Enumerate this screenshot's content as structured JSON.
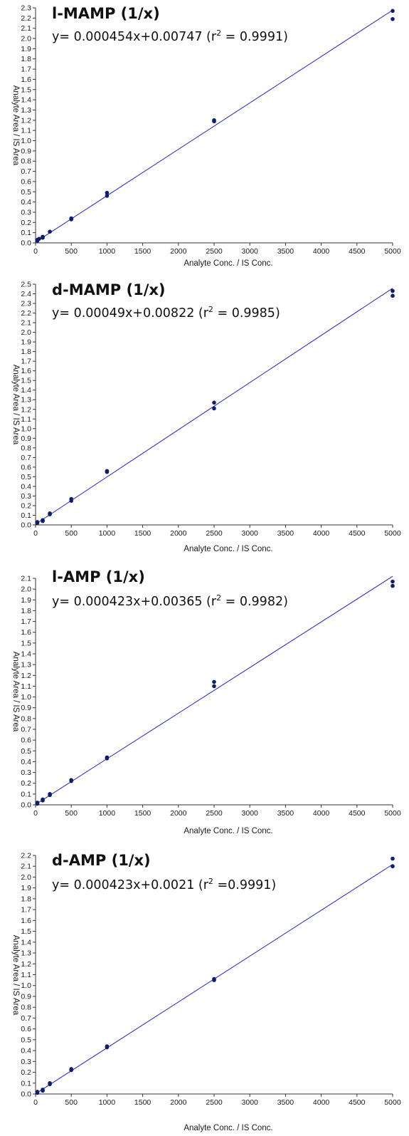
{
  "colors": {
    "line": "#1f23c8",
    "points": "#0d1f6b",
    "axis": "#333333"
  },
  "chart_data": [
    {
      "type": "scatter",
      "title": "l-MAMP (1/x)",
      "equation": {
        "before": "y= 0.000454x+0.00747 (r",
        "exp": "2",
        "after": " = 0.9991)"
      },
      "xlabel": "Analyte Conc. / IS Conc.",
      "ylabel": "Analyte Area / IS Area",
      "xlim": [
        0,
        5000
      ],
      "ylim": [
        0,
        2.3
      ],
      "yticks": [
        "0.0",
        "0.1",
        "0.2",
        "0.3",
        "0.4",
        "0.5",
        "0.6",
        "0.7",
        "0.8",
        "0.9",
        "1.0",
        "1.1",
        "1.2",
        "1.3",
        "1.4",
        "1.5",
        "1.6",
        "1.7",
        "1.8",
        "1.9",
        "2.0",
        "2.1",
        "2.2",
        "2.3"
      ],
      "xticks": [
        "0",
        "500",
        "1000",
        "1500",
        "2000",
        "2500",
        "3000",
        "3500",
        "4000",
        "4500",
        "5000"
      ],
      "fit": {
        "slope": 0.000454,
        "intercept": 0.00747
      },
      "points": [
        [
          25,
          0.03
        ],
        [
          25,
          0.02
        ],
        [
          50,
          0.04
        ],
        [
          100,
          0.06
        ],
        [
          100,
          0.05
        ],
        [
          200,
          0.11
        ],
        [
          500,
          0.24
        ],
        [
          500,
          0.23
        ],
        [
          1000,
          0.49
        ],
        [
          1000,
          0.46
        ],
        [
          2500,
          1.2
        ],
        [
          2500,
          1.19
        ],
        [
          5000,
          2.27
        ],
        [
          5000,
          2.19
        ]
      ]
    },
    {
      "type": "scatter",
      "title": "d-MAMP (1/x)",
      "equation": {
        "before": "y= 0.00049x+0.00822 (r",
        "exp": "2",
        "after": " = 0.9985)"
      },
      "xlabel": "Analyte Conc. / IS Conc.",
      "ylabel": "Analyte Area / IS Area",
      "xlim": [
        0,
        5000
      ],
      "ylim": [
        0,
        2.5
      ],
      "yticks": [
        "0.0",
        "0.1",
        "0.2",
        "0.3",
        "0.4",
        "0.5",
        "0.6",
        "0.7",
        "0.8",
        "0.9",
        "1.0",
        "1.1",
        "1.2",
        "1.3",
        "1.4",
        "1.5",
        "1.6",
        "1.7",
        "1.8",
        "1.9",
        "2.0",
        "2.1",
        "2.2",
        "2.3",
        "2.4",
        "2.5"
      ],
      "xticks": [
        "0",
        "500",
        "1000",
        "1500",
        "2000",
        "2500",
        "3000",
        "3500",
        "4000",
        "4500",
        "5000"
      ],
      "fit": {
        "slope": 0.00049,
        "intercept": 0.00822
      },
      "points": [
        [
          25,
          0.03
        ],
        [
          25,
          0.02
        ],
        [
          100,
          0.05
        ],
        [
          100,
          0.04
        ],
        [
          200,
          0.12
        ],
        [
          200,
          0.11
        ],
        [
          500,
          0.27
        ],
        [
          500,
          0.25
        ],
        [
          1000,
          0.56
        ],
        [
          1000,
          0.55
        ],
        [
          2500,
          1.27
        ],
        [
          2500,
          1.21
        ],
        [
          5000,
          2.43
        ],
        [
          5000,
          2.38
        ]
      ]
    },
    {
      "type": "scatter",
      "title": "l-AMP (1/x)",
      "equation": {
        "before": "y= 0.000423x+0.00365 (r",
        "exp": "2",
        "after": " = 0.9982)"
      },
      "xlabel": "Analyte Conc. / IS Conc.",
      "ylabel": "Analyte Area / IS Area",
      "xlim": [
        0,
        5000
      ],
      "ylim": [
        0,
        2.1
      ],
      "yticks": [
        "0.0",
        "0.1",
        "0.2",
        "0.3",
        "0.4",
        "0.5",
        "0.6",
        "0.7",
        "0.8",
        "0.9",
        "1.0",
        "1.1",
        "1.2",
        "1.3",
        "1.4",
        "1.5",
        "1.6",
        "1.7",
        "1.8",
        "1.9",
        "2.0",
        "2.1"
      ],
      "xticks": [
        "0",
        "500",
        "1000",
        "1500",
        "2000",
        "2500",
        "3000",
        "3500",
        "4000",
        "4500",
        "5000"
      ],
      "fit": {
        "slope": 0.000423,
        "intercept": 0.00365
      },
      "points": [
        [
          25,
          0.02
        ],
        [
          25,
          0.01
        ],
        [
          100,
          0.05
        ],
        [
          100,
          0.04
        ],
        [
          200,
          0.1
        ],
        [
          200,
          0.09
        ],
        [
          500,
          0.23
        ],
        [
          500,
          0.22
        ],
        [
          1000,
          0.44
        ],
        [
          1000,
          0.43
        ],
        [
          2500,
          1.14
        ],
        [
          2500,
          1.1
        ],
        [
          5000,
          2.07
        ],
        [
          5000,
          2.03
        ]
      ]
    },
    {
      "type": "scatter",
      "title": "d-AMP (1/x)",
      "equation": {
        "before": "y= 0.000423x+0.0021 (r",
        "exp": "2",
        "after": " =0.9991)"
      },
      "xlabel": "Analyte Conc. / IS Conc.",
      "ylabel": "Analyte Area / IS Area",
      "xlim": [
        0,
        5000
      ],
      "ylim": [
        0,
        2.2
      ],
      "yticks": [
        "0.0",
        "0.1",
        "0.2",
        "0.3",
        "0.4",
        "0.5",
        "0.6",
        "0.7",
        "0.8",
        "0.9",
        "1.0",
        "1.1",
        "1.2",
        "1.3",
        "1.4",
        "1.5",
        "1.6",
        "1.7",
        "1.8",
        "1.9",
        "2.0",
        "2.1",
        "2.2"
      ],
      "xticks": [
        "0",
        "500",
        "1000",
        "1500",
        "2000",
        "2500",
        "3000",
        "3500",
        "4000",
        "4500",
        "5000"
      ],
      "fit": {
        "slope": 0.000423,
        "intercept": 0.0021
      },
      "points": [
        [
          25,
          0.02
        ],
        [
          25,
          0.01
        ],
        [
          100,
          0.04
        ],
        [
          100,
          0.03
        ],
        [
          200,
          0.1
        ],
        [
          200,
          0.09
        ],
        [
          500,
          0.23
        ],
        [
          500,
          0.22
        ],
        [
          1000,
          0.44
        ],
        [
          1000,
          0.43
        ],
        [
          2500,
          1.06
        ],
        [
          2500,
          1.05
        ],
        [
          5000,
          2.17
        ],
        [
          5000,
          2.1
        ]
      ]
    }
  ]
}
